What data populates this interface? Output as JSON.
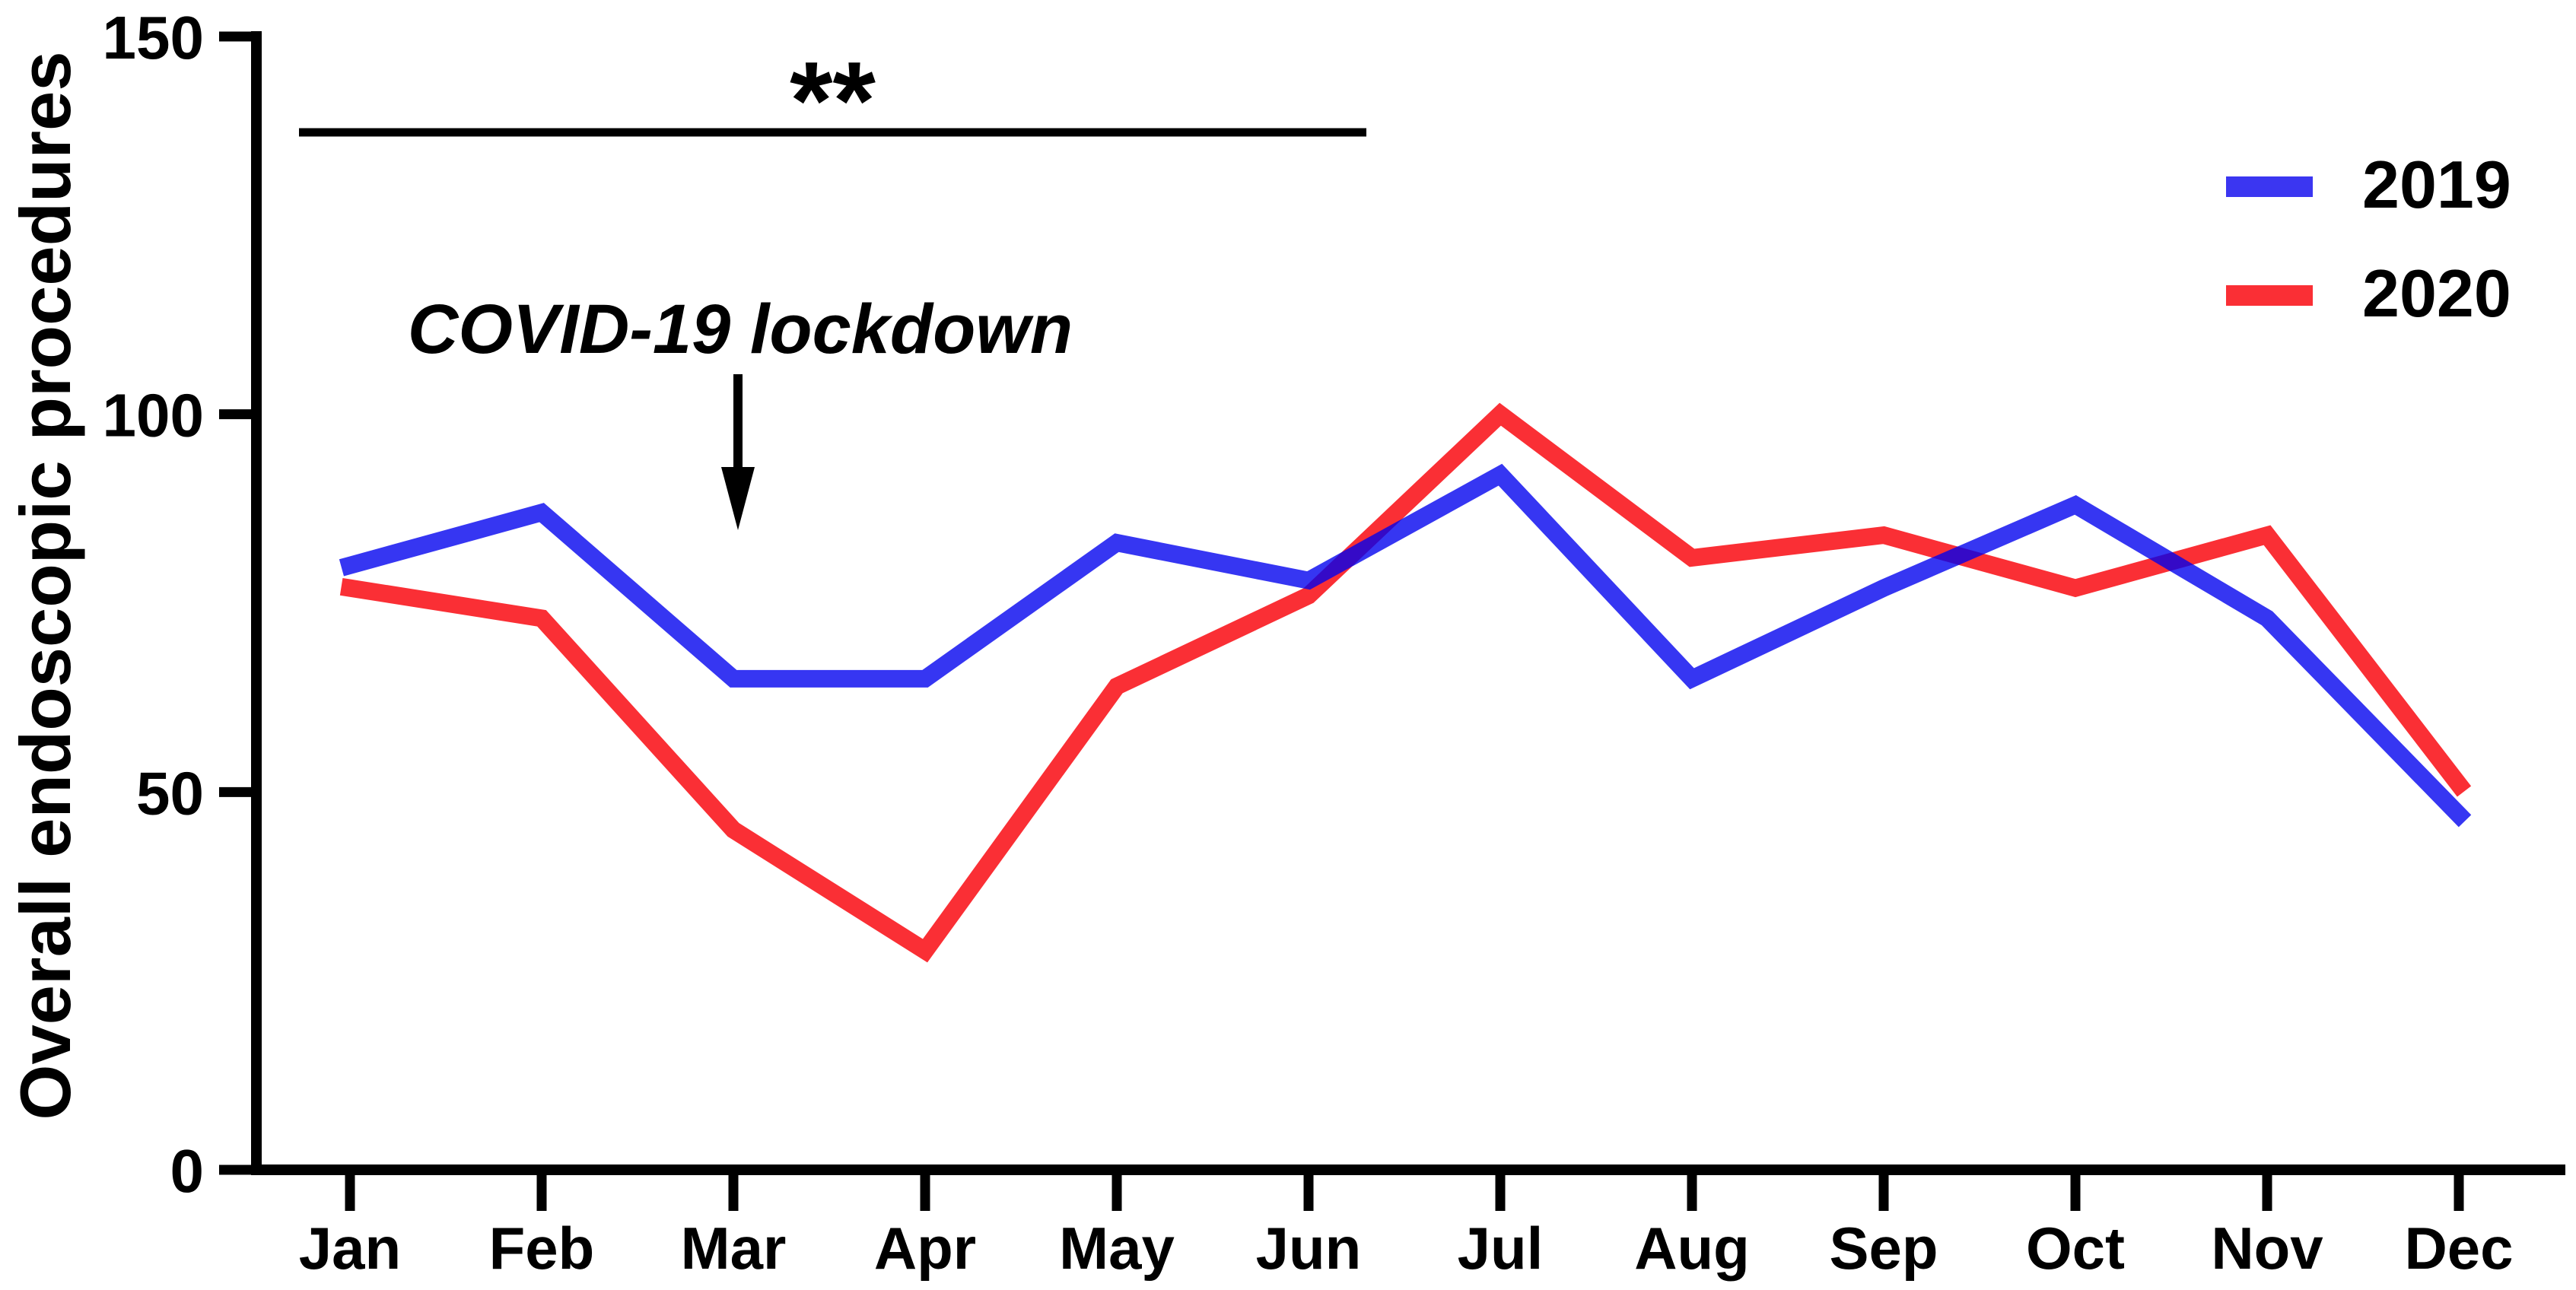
{
  "page": {
    "background": "#ffffff",
    "axis_color": "#000000",
    "text_color": "#000000"
  },
  "chart_data": {
    "type": "line",
    "title": "",
    "xlabel": "",
    "ylabel": "Overall endoscopic procedures",
    "categories": [
      "Jan",
      "Feb",
      "Mar",
      "Apr",
      "May",
      "Jun",
      "Jul",
      "Aug",
      "Sep",
      "Oct",
      "Nov",
      "Dec"
    ],
    "ylim": [
      0,
      150
    ],
    "yticks": [
      0,
      50,
      100,
      150
    ],
    "grid": false,
    "legend_position": "top-right",
    "series": [
      {
        "name": "2019",
        "color": "#3B36F1",
        "stroke": "rgba(0,0,238,0.79)",
        "values": [
          80,
          87,
          65,
          65,
          83,
          78,
          92,
          65,
          77,
          88,
          73,
          47
        ]
      },
      {
        "name": "2020",
        "color": "#FA2F35",
        "stroke": "#FA2F35",
        "values": [
          77,
          73,
          45,
          29,
          64,
          76,
          100,
          81,
          84,
          77,
          84,
          51
        ]
      }
    ],
    "annotations": {
      "significance_bar": {
        "label": "**",
        "spans_months": [
          "Jan",
          "Jun"
        ]
      },
      "lockdown": {
        "label": "COVID-19 lockdown",
        "arrow_points_to_month": "Mar"
      }
    }
  }
}
